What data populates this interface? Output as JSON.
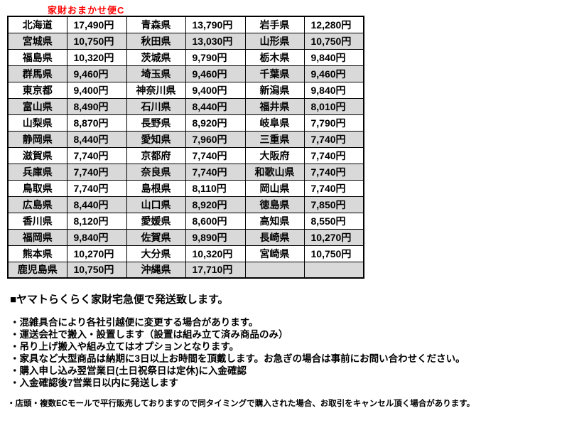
{
  "title": {
    "text": "家財おまかせ便C",
    "color": "#ff0000"
  },
  "table": {
    "alt_row_color": "#d9d9d9",
    "rows": [
      [
        {
          "pref": "北海道",
          "price": "17,490円"
        },
        {
          "pref": "青森県",
          "price": "13,790円"
        },
        {
          "pref": "岩手県",
          "price": "12,280円"
        }
      ],
      [
        {
          "pref": "宮城県",
          "price": "10,750円"
        },
        {
          "pref": "秋田県",
          "price": "13,030円"
        },
        {
          "pref": "山形県",
          "price": "10,750円"
        }
      ],
      [
        {
          "pref": "福島県",
          "price": "10,320円"
        },
        {
          "pref": "茨城県",
          "price": "9,790円"
        },
        {
          "pref": "栃木県",
          "price": "9,840円"
        }
      ],
      [
        {
          "pref": "群馬県",
          "price": "9,460円"
        },
        {
          "pref": "埼玉県",
          "price": "9,460円"
        },
        {
          "pref": "千葉県",
          "price": "9,460円"
        }
      ],
      [
        {
          "pref": "東京都",
          "price": "9,400円"
        },
        {
          "pref": "神奈川県",
          "price": "9,400円"
        },
        {
          "pref": "新潟県",
          "price": "9,840円"
        }
      ],
      [
        {
          "pref": "富山県",
          "price": "8,490円"
        },
        {
          "pref": "石川県",
          "price": "8,440円"
        },
        {
          "pref": "福井県",
          "price": "8,010円"
        }
      ],
      [
        {
          "pref": "山梨県",
          "price": "8,870円"
        },
        {
          "pref": "長野県",
          "price": "8,920円"
        },
        {
          "pref": "岐阜県",
          "price": "7,790円"
        }
      ],
      [
        {
          "pref": "静岡県",
          "price": "8,440円"
        },
        {
          "pref": "愛知県",
          "price": "7,960円"
        },
        {
          "pref": "三重県",
          "price": "7,740円"
        }
      ],
      [
        {
          "pref": "滋賀県",
          "price": "7,740円"
        },
        {
          "pref": "京都府",
          "price": "7,740円"
        },
        {
          "pref": "大阪府",
          "price": "7,740円"
        }
      ],
      [
        {
          "pref": "兵庫県",
          "price": "7,740円"
        },
        {
          "pref": "奈良県",
          "price": "7,740円"
        },
        {
          "pref": "和歌山県",
          "price": "7,740円"
        }
      ],
      [
        {
          "pref": "鳥取県",
          "price": "7,740円"
        },
        {
          "pref": "島根県",
          "price": "8,110円"
        },
        {
          "pref": "岡山県",
          "price": "7,740円"
        }
      ],
      [
        {
          "pref": "広島県",
          "price": "8,440円"
        },
        {
          "pref": "山口県",
          "price": "8,920円"
        },
        {
          "pref": "徳島県",
          "price": "7,850円"
        }
      ],
      [
        {
          "pref": "香川県",
          "price": "8,120円"
        },
        {
          "pref": "愛媛県",
          "price": "8,600円"
        },
        {
          "pref": "高知県",
          "price": "8,550円"
        }
      ],
      [
        {
          "pref": "福岡県",
          "price": "9,840円"
        },
        {
          "pref": "佐賀県",
          "price": "9,890円"
        },
        {
          "pref": "長崎県",
          "price": "10,270円"
        }
      ],
      [
        {
          "pref": "熊本県",
          "price": "10,270円"
        },
        {
          "pref": "大分県",
          "price": "10,320円"
        },
        {
          "pref": "宮崎県",
          "price": "10,750円"
        }
      ],
      [
        {
          "pref": "鹿児島県",
          "price": "10,750円"
        },
        {
          "pref": "沖縄県",
          "price": "17,710円"
        },
        {
          "pref": "",
          "price": ""
        }
      ]
    ]
  },
  "notes": {
    "heading": "■ヤマトらくらく家財宅急便で発送致します。",
    "bullets": [
      "・混雑具合により各社引越便に変更する場合があります。",
      "・運送会社で搬入・設置します（設置は組み立て済み商品のみ）",
      "・吊り上げ搬入や組み立てはオプションとなります。",
      "・家具など大型商品は納期に3日以上お時間を頂戴します。お急ぎの場合は事前にお問い合わせください。",
      "・購入申し込み翌営業日(土日祝祭日は定休)に入金確認",
      "・入金確認後7営業日以内に発送します"
    ],
    "footnote": "・店頭・複数ECモールで平行販売しておりますので同タイミングで購入された場合、お取引をキャンセル頂く場合があります。"
  }
}
